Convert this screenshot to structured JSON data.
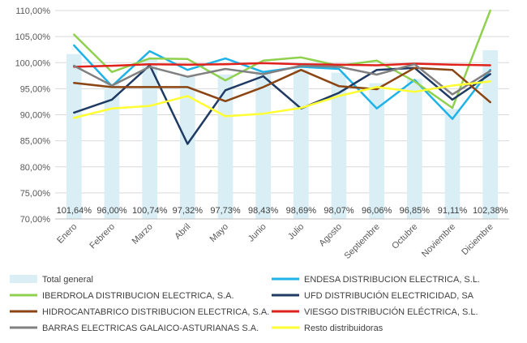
{
  "chart_data": {
    "type": "bar",
    "categories": [
      "Enero",
      "Febrero",
      "Marzo",
      "Abril",
      "Mayo",
      "Junio",
      "Julio",
      "Agosto",
      "Septiembre",
      "Octubre",
      "Noviembre",
      "Diciembre"
    ],
    "ylim": [
      70,
      110
    ],
    "yticks": [
      70,
      75,
      80,
      85,
      90,
      95,
      100,
      105,
      110
    ],
    "ytick_labels": [
      "70,00%",
      "75,00%",
      "80,00%",
      "85,00%",
      "90,00%",
      "95,00%",
      "100,00%",
      "105,00%",
      "110,00%"
    ],
    "bars": {
      "name": "Total general",
      "color": "#d9eef5",
      "values": [
        101.64,
        96.0,
        100.74,
        97.32,
        97.73,
        98.43,
        98.69,
        98.07,
        96.06,
        96.85,
        91.11,
        102.38
      ],
      "labels": [
        "101,64%",
        "96,00%",
        "100,74%",
        "97,32%",
        "97,73%",
        "98,43%",
        "98,69%",
        "98,07%",
        "96,06%",
        "96,85%",
        "91,11%",
        "102,38%"
      ]
    },
    "series": [
      {
        "name": "ENDESA DISTRIBUCION ELECTRICA, S.L.",
        "color": "#1fb2e8",
        "values": [
          103.3,
          95.5,
          102.2,
          98.6,
          100.8,
          98.2,
          99.2,
          98.8,
          91.2,
          96.7,
          89.2,
          98.6
        ]
      },
      {
        "name": "IBERDROLA DISTRIBUCION ELECTRICA, S.A.",
        "color": "#8fd14f",
        "values": [
          105.4,
          98.2,
          100.8,
          100.7,
          96.6,
          100.4,
          101.0,
          99.4,
          100.4,
          96.4,
          91.3,
          110.0
        ]
      },
      {
        "name": "UFD DISTRIBUCIÓN ELECTRICIDAD, SA",
        "color": "#1f3b63",
        "values": [
          90.4,
          92.9,
          99.5,
          84.4,
          94.7,
          97.4,
          91.2,
          94.2,
          98.6,
          99.0,
          92.9,
          97.8
        ]
      },
      {
        "name": "HIDROCANTABRICO DISTRIBUCION ELECTRICA, S.A.",
        "color": "#8b4513",
        "values": [
          96.1,
          95.3,
          95.3,
          95.3,
          92.6,
          95.3,
          98.6,
          95.5,
          94.9,
          99.0,
          98.6,
          92.4
        ]
      },
      {
        "name": "VIESGO DISTRIBUCIÓN ELÉCTRICA, S.L.",
        "color": "#e0201b",
        "values": [
          99.2,
          99.4,
          99.7,
          99.6,
          99.7,
          99.9,
          99.7,
          99.6,
          99.5,
          99.8,
          99.6,
          99.5
        ]
      },
      {
        "name": "BARRAS ELECTRICAS GALAICO-ASTURIANAS S.A.",
        "color": "#808080",
        "values": [
          99.4,
          95.6,
          99.2,
          97.3,
          98.8,
          97.8,
          99.4,
          99.2,
          97.7,
          99.7,
          93.9,
          98.4
        ]
      },
      {
        "name": "Resto distribuidoras",
        "color": "#ffff33",
        "values": [
          89.4,
          91.2,
          91.7,
          93.6,
          89.7,
          90.2,
          91.3,
          93.6,
          95.3,
          94.4,
          95.6,
          96.4
        ]
      }
    ],
    "grid": true,
    "legend": "bottom",
    "legend_order": [
      "Total general",
      "ENDESA DISTRIBUCION ELECTRICA, S.L.",
      "IBERDROLA DISTRIBUCION ELECTRICA, S.A.",
      "UFD DISTRIBUCIÓN ELECTRICIDAD, SA",
      "HIDROCANTABRICO DISTRIBUCION ELECTRICA, S.A.",
      "VIESGO DISTRIBUCIÓN ELÉCTRICA, S.L.",
      "BARRAS ELECTRICAS GALAICO-ASTURIANAS S.A.",
      "Resto distribuidoras"
    ]
  }
}
